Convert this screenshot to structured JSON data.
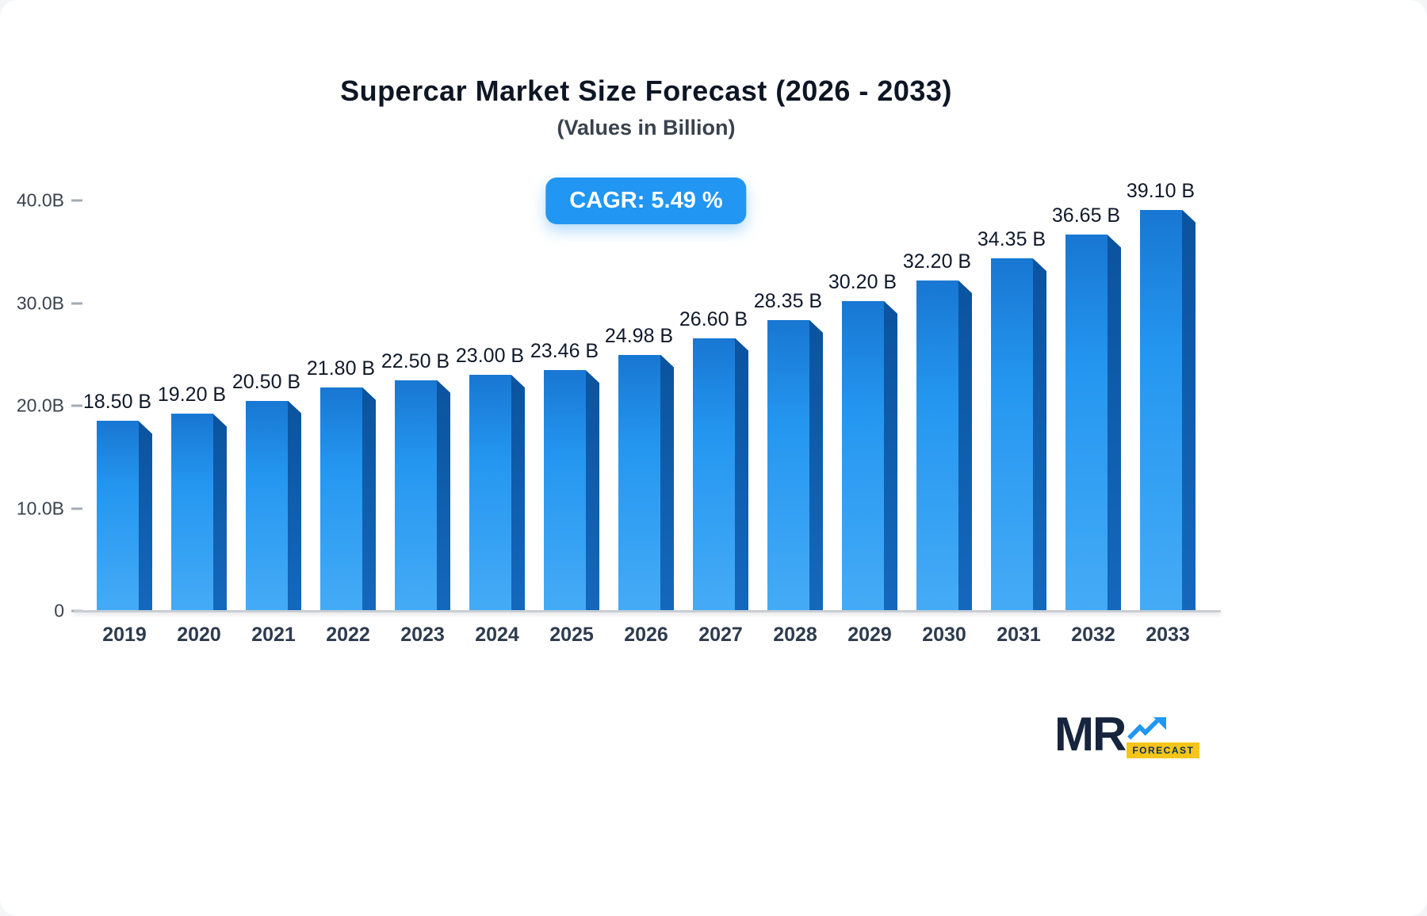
{
  "header": {
    "title": "Supercar Market Size Forecast (2026 - 2033)",
    "subtitle": "(Values in Billion)"
  },
  "badge": {
    "label": "CAGR: 5.49 %"
  },
  "chart_data": {
    "type": "bar",
    "title": "Supercar Market Size Forecast (2026 - 2033)",
    "subtitle": "(Values in Billion)",
    "cagr": "5.49 %",
    "categories": [
      "2019",
      "2020",
      "2021",
      "2022",
      "2023",
      "2024",
      "2025",
      "2026",
      "2027",
      "2028",
      "2029",
      "2030",
      "2031",
      "2032",
      "2033"
    ],
    "values": [
      18.5,
      19.2,
      20.5,
      21.8,
      22.5,
      23.0,
      23.46,
      24.98,
      26.6,
      28.35,
      30.2,
      32.2,
      34.35,
      36.65,
      39.1
    ],
    "value_labels": [
      "18.50 B",
      "19.20 B",
      "20.50 B",
      "21.80 B",
      "22.50 B",
      "23.00 B",
      "23.46 B",
      "24.98 B",
      "26.60 B",
      "28.35 B",
      "30.20 B",
      "32.20 B",
      "34.35 B",
      "36.65 B",
      "39.10 B"
    ],
    "y_ticks": [
      {
        "label": "40.0B",
        "value": 40
      },
      {
        "label": "30.0B",
        "value": 30
      },
      {
        "label": "20.0B",
        "value": 20
      },
      {
        "label": "10.0B",
        "value": 10
      },
      {
        "label": "0",
        "value": 0
      }
    ],
    "ylim": [
      0,
      40
    ],
    "xlabel": "",
    "ylabel": "",
    "grid": false,
    "legend_position": "none",
    "colors": {
      "bar_front_top": "#1877d2",
      "bar_front_bottom": "#45abf6",
      "bar_side": "#0b539e",
      "badge_background": "#2196f3",
      "badge_text": "#ffffff",
      "axis_line": "#c9ced4"
    }
  },
  "logo": {
    "name": "MR",
    "tagline": "FORECAST"
  }
}
